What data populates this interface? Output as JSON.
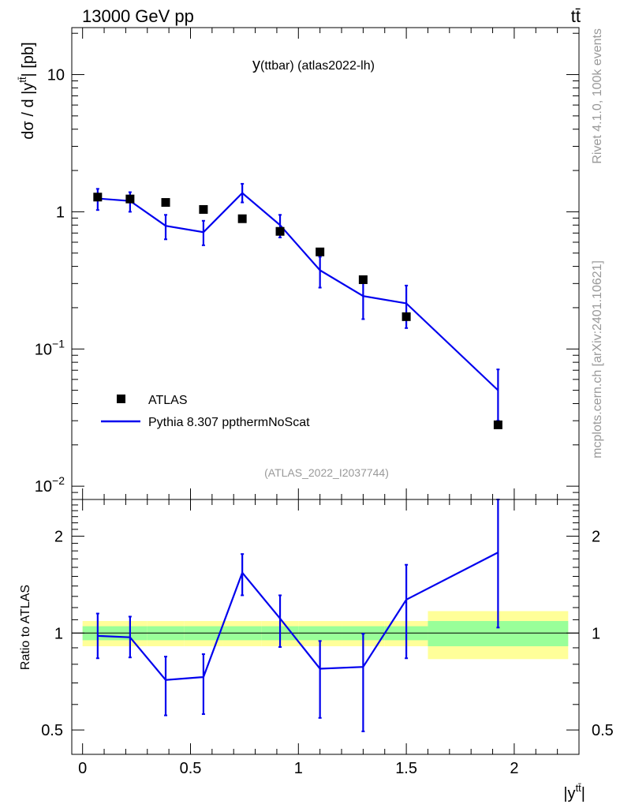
{
  "header": {
    "energy_label": "13000 GeV pp",
    "process_label": "tt̄"
  },
  "side": {
    "rivet_label": "Rivet 4.1.0,  100k events",
    "source_label": "mcplots.cern.ch [arXiv:2401.10621]"
  },
  "legend": {
    "data_label": "ATLAS",
    "mc_label": "Pythia 8.307 ppthermNoScat"
  },
  "chart_data": {
    "type": "line",
    "title": "y(ttbar) (atlas2022-lh)",
    "title_main": "y",
    "title_sub": "(ttbar) (atlas2022-lh)",
    "watermark": "(ATLAS_2022_I2037744)",
    "xlabel": "|y",
    "xlabel_sup": "tt̄",
    "xlabel_end": "|",
    "ylabel": "dσ / d |y",
    "ylabel_sup": "tt̄",
    "ylabel_end": "| [pb]",
    "ratio_ylabel": "Ratio to ATLAS",
    "xlim": [
      -0.05,
      2.3
    ],
    "ylim": [
      0.008,
      22
    ],
    "yscale": "log",
    "ratio_ylim": [
      0.42,
      2.6
    ],
    "x_ticks": [
      0,
      0.5,
      1,
      1.5,
      2
    ],
    "x_tick_labels": [
      "0",
      "0.5",
      "1",
      "1.5",
      "2"
    ],
    "y_tick_labels": [
      {
        "mant": "10",
        "exp": "−2"
      },
      {
        "mant": "10",
        "exp": "−1"
      },
      {
        "mant": "1",
        "exp": ""
      },
      {
        "mant": "10",
        "exp": ""
      }
    ],
    "ratio_tick_labels": [
      "0.5",
      "1",
      "2"
    ],
    "bins": [
      [
        0.0,
        0.14
      ],
      [
        0.14,
        0.3
      ],
      [
        0.3,
        0.47
      ],
      [
        0.47,
        0.65
      ],
      [
        0.65,
        0.83
      ],
      [
        0.83,
        1.0
      ],
      [
        1.0,
        1.2
      ],
      [
        1.2,
        1.4
      ],
      [
        1.4,
        1.6
      ],
      [
        1.6,
        2.25
      ]
    ],
    "series": [
      {
        "name": "ATLAS",
        "x": [
          0.07,
          0.22,
          0.385,
          0.56,
          0.74,
          0.915,
          1.1,
          1.3,
          1.5,
          1.925
        ],
        "values": [
          1.28,
          1.24,
          1.17,
          1.04,
          0.89,
          0.72,
          0.51,
          0.32,
          0.172,
          0.028
        ],
        "ratio_band_inner": [
          0.05,
          0.05,
          0.05,
          0.05,
          0.05,
          0.05,
          0.05,
          0.05,
          0.05,
          0.09
        ],
        "ratio_band_outer": [
          0.09,
          0.09,
          0.09,
          0.09,
          0.09,
          0.09,
          0.09,
          0.09,
          0.09,
          0.17
        ]
      },
      {
        "name": "Pythia 8.307 ppthermNoScat",
        "x": [
          0.07,
          0.22,
          0.385,
          0.56,
          0.74,
          0.915,
          1.1,
          1.3,
          1.5,
          1.925
        ],
        "values": [
          1.25,
          1.2,
          0.79,
          0.71,
          1.37,
          0.8,
          0.375,
          0.243,
          0.215,
          0.05
        ],
        "err_low": [
          1.03,
          1.0,
          0.63,
          0.57,
          1.17,
          0.65,
          0.28,
          0.165,
          0.142,
          0.03
        ],
        "err_high": [
          1.47,
          1.39,
          0.95,
          0.86,
          1.6,
          0.95,
          0.47,
          0.32,
          0.29,
          0.071
        ],
        "ratio": [
          0.98,
          0.97,
          0.715,
          0.73,
          1.54,
          1.11,
          0.775,
          0.785,
          1.27,
          1.78
        ],
        "ratio_low": [
          0.835,
          0.84,
          0.555,
          0.56,
          1.31,
          0.905,
          0.545,
          0.495,
          0.835,
          1.04
        ],
        "ratio_high": [
          1.15,
          1.125,
          0.845,
          0.86,
          1.76,
          1.31,
          0.945,
          0.995,
          1.63,
          2.62
        ]
      }
    ],
    "colors": {
      "mc_line": "#0000ee",
      "data_marker": "#000000",
      "band_inner": "#99ff99",
      "band_outer": "#ffff99",
      "watermark": "#999999",
      "side_text": "#999999"
    }
  }
}
